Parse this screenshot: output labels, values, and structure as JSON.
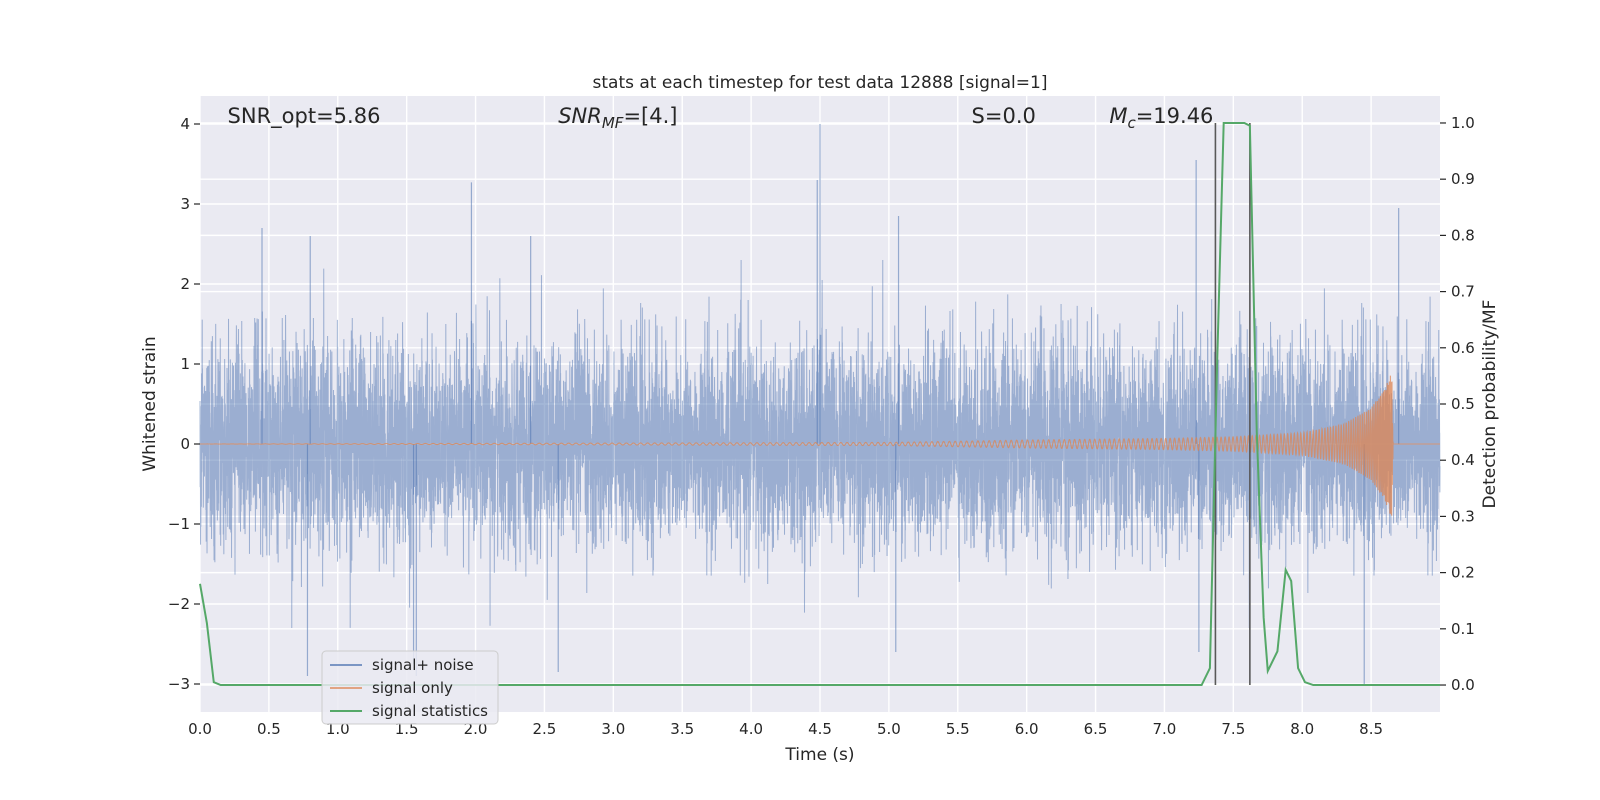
{
  "chart_data": {
    "type": "line",
    "title": "stats at each timestep for test data 12888 [signal=1]",
    "xlabel": "Time (s)",
    "ylabel": "Whitened strain",
    "y2label": "Detection probability/MF",
    "xlim": [
      0.0,
      9.0
    ],
    "ylim": [
      -3.35,
      4.35
    ],
    "y2lim": [
      -0.048,
      1.048
    ],
    "x_ticks": [
      0.0,
      0.5,
      1.0,
      1.5,
      2.0,
      2.5,
      3.0,
      3.5,
      4.0,
      4.5,
      5.0,
      5.5,
      6.0,
      6.5,
      7.0,
      7.5,
      8.0,
      8.5
    ],
    "x_tick_labels": [
      "0.0",
      "0.5",
      "1.0",
      "1.5",
      "2.0",
      "2.5",
      "3.0",
      "3.5",
      "4.0",
      "4.5",
      "5.0",
      "5.5",
      "6.0",
      "6.5",
      "7.0",
      "7.5",
      "8.0",
      "8.5"
    ],
    "y_ticks": [
      -3,
      -2,
      -1,
      0,
      1,
      2,
      3,
      4
    ],
    "y_tick_labels": [
      "−3",
      "−2",
      "−1",
      "0",
      "1",
      "2",
      "3",
      "4"
    ],
    "y2_ticks": [
      0.0,
      0.1,
      0.2,
      0.3,
      0.4,
      0.5,
      0.6,
      0.7,
      0.8,
      0.9,
      1.0
    ],
    "y2_tick_labels": [
      "0.0",
      "0.1",
      "0.2",
      "0.3",
      "0.4",
      "0.5",
      "0.6",
      "0.7",
      "0.8",
      "0.9",
      "1.0"
    ],
    "grid": true,
    "legend_position": "lower-left",
    "annotations": [
      {
        "text": "SNR_opt=5.86",
        "x": 0.2
      },
      {
        "text": "SNR_MF=[4.]",
        "x": 2.6
      },
      {
        "text": "S=0.0",
        "x": 5.6
      },
      {
        "text": "M_c=19.46",
        "x": 6.6
      }
    ],
    "vlines": [
      7.37,
      7.62
    ],
    "series": [
      {
        "name": "signal+ noise",
        "color": "#4c72b0",
        "axis": "left",
        "style": "dense noise, amplitude approx ±1.2 with spikes",
        "spikes": [
          {
            "x": 0.45,
            "y": 2.7
          },
          {
            "x": 0.8,
            "y": 2.6
          },
          {
            "x": 1.97,
            "y": 3.27
          },
          {
            "x": 2.4,
            "y": 2.6
          },
          {
            "x": 4.5,
            "y": 4.0
          },
          {
            "x": 4.48,
            "y": 3.3
          },
          {
            "x": 5.07,
            "y": 2.85
          },
          {
            "x": 7.23,
            "y": 3.55
          },
          {
            "x": 8.7,
            "y": 2.95
          },
          {
            "x": 0.78,
            "y": -2.9
          },
          {
            "x": 1.55,
            "y": -2.75
          },
          {
            "x": 2.6,
            "y": -2.85
          },
          {
            "x": 5.05,
            "y": -2.6
          },
          {
            "x": 7.25,
            "y": -2.6
          },
          {
            "x": 8.45,
            "y": -3.0
          },
          {
            "x": 1.57,
            "y": -2.9
          }
        ]
      },
      {
        "name": "signal only",
        "color": "#dd8452",
        "axis": "left",
        "style": "chirp growing until merger at about 8.65 s",
        "x": [
          0.0,
          5.0,
          6.0,
          7.0,
          7.5,
          8.0,
          8.3,
          8.5,
          8.6,
          8.65,
          8.66,
          9.0
        ],
        "envelope": [
          0.0,
          0.02,
          0.05,
          0.07,
          0.09,
          0.14,
          0.25,
          0.45,
          0.7,
          0.95,
          0.0,
          0.0
        ]
      },
      {
        "name": "signal statistics",
        "color": "#55a868",
        "axis": "right",
        "x": [
          0.0,
          0.05,
          0.1,
          0.15,
          7.27,
          7.33,
          7.38,
          7.43,
          7.5,
          7.58,
          7.62,
          7.67,
          7.72,
          7.75,
          7.82,
          7.88,
          7.92,
          7.97,
          8.02,
          8.08,
          9.0
        ],
        "y": [
          0.18,
          0.11,
          0.005,
          0.0,
          0.0,
          0.03,
          0.55,
          1.0,
          1.0,
          1.0,
          0.995,
          0.45,
          0.12,
          0.025,
          0.06,
          0.205,
          0.185,
          0.03,
          0.005,
          0.0,
          0.0
        ]
      }
    ]
  }
}
